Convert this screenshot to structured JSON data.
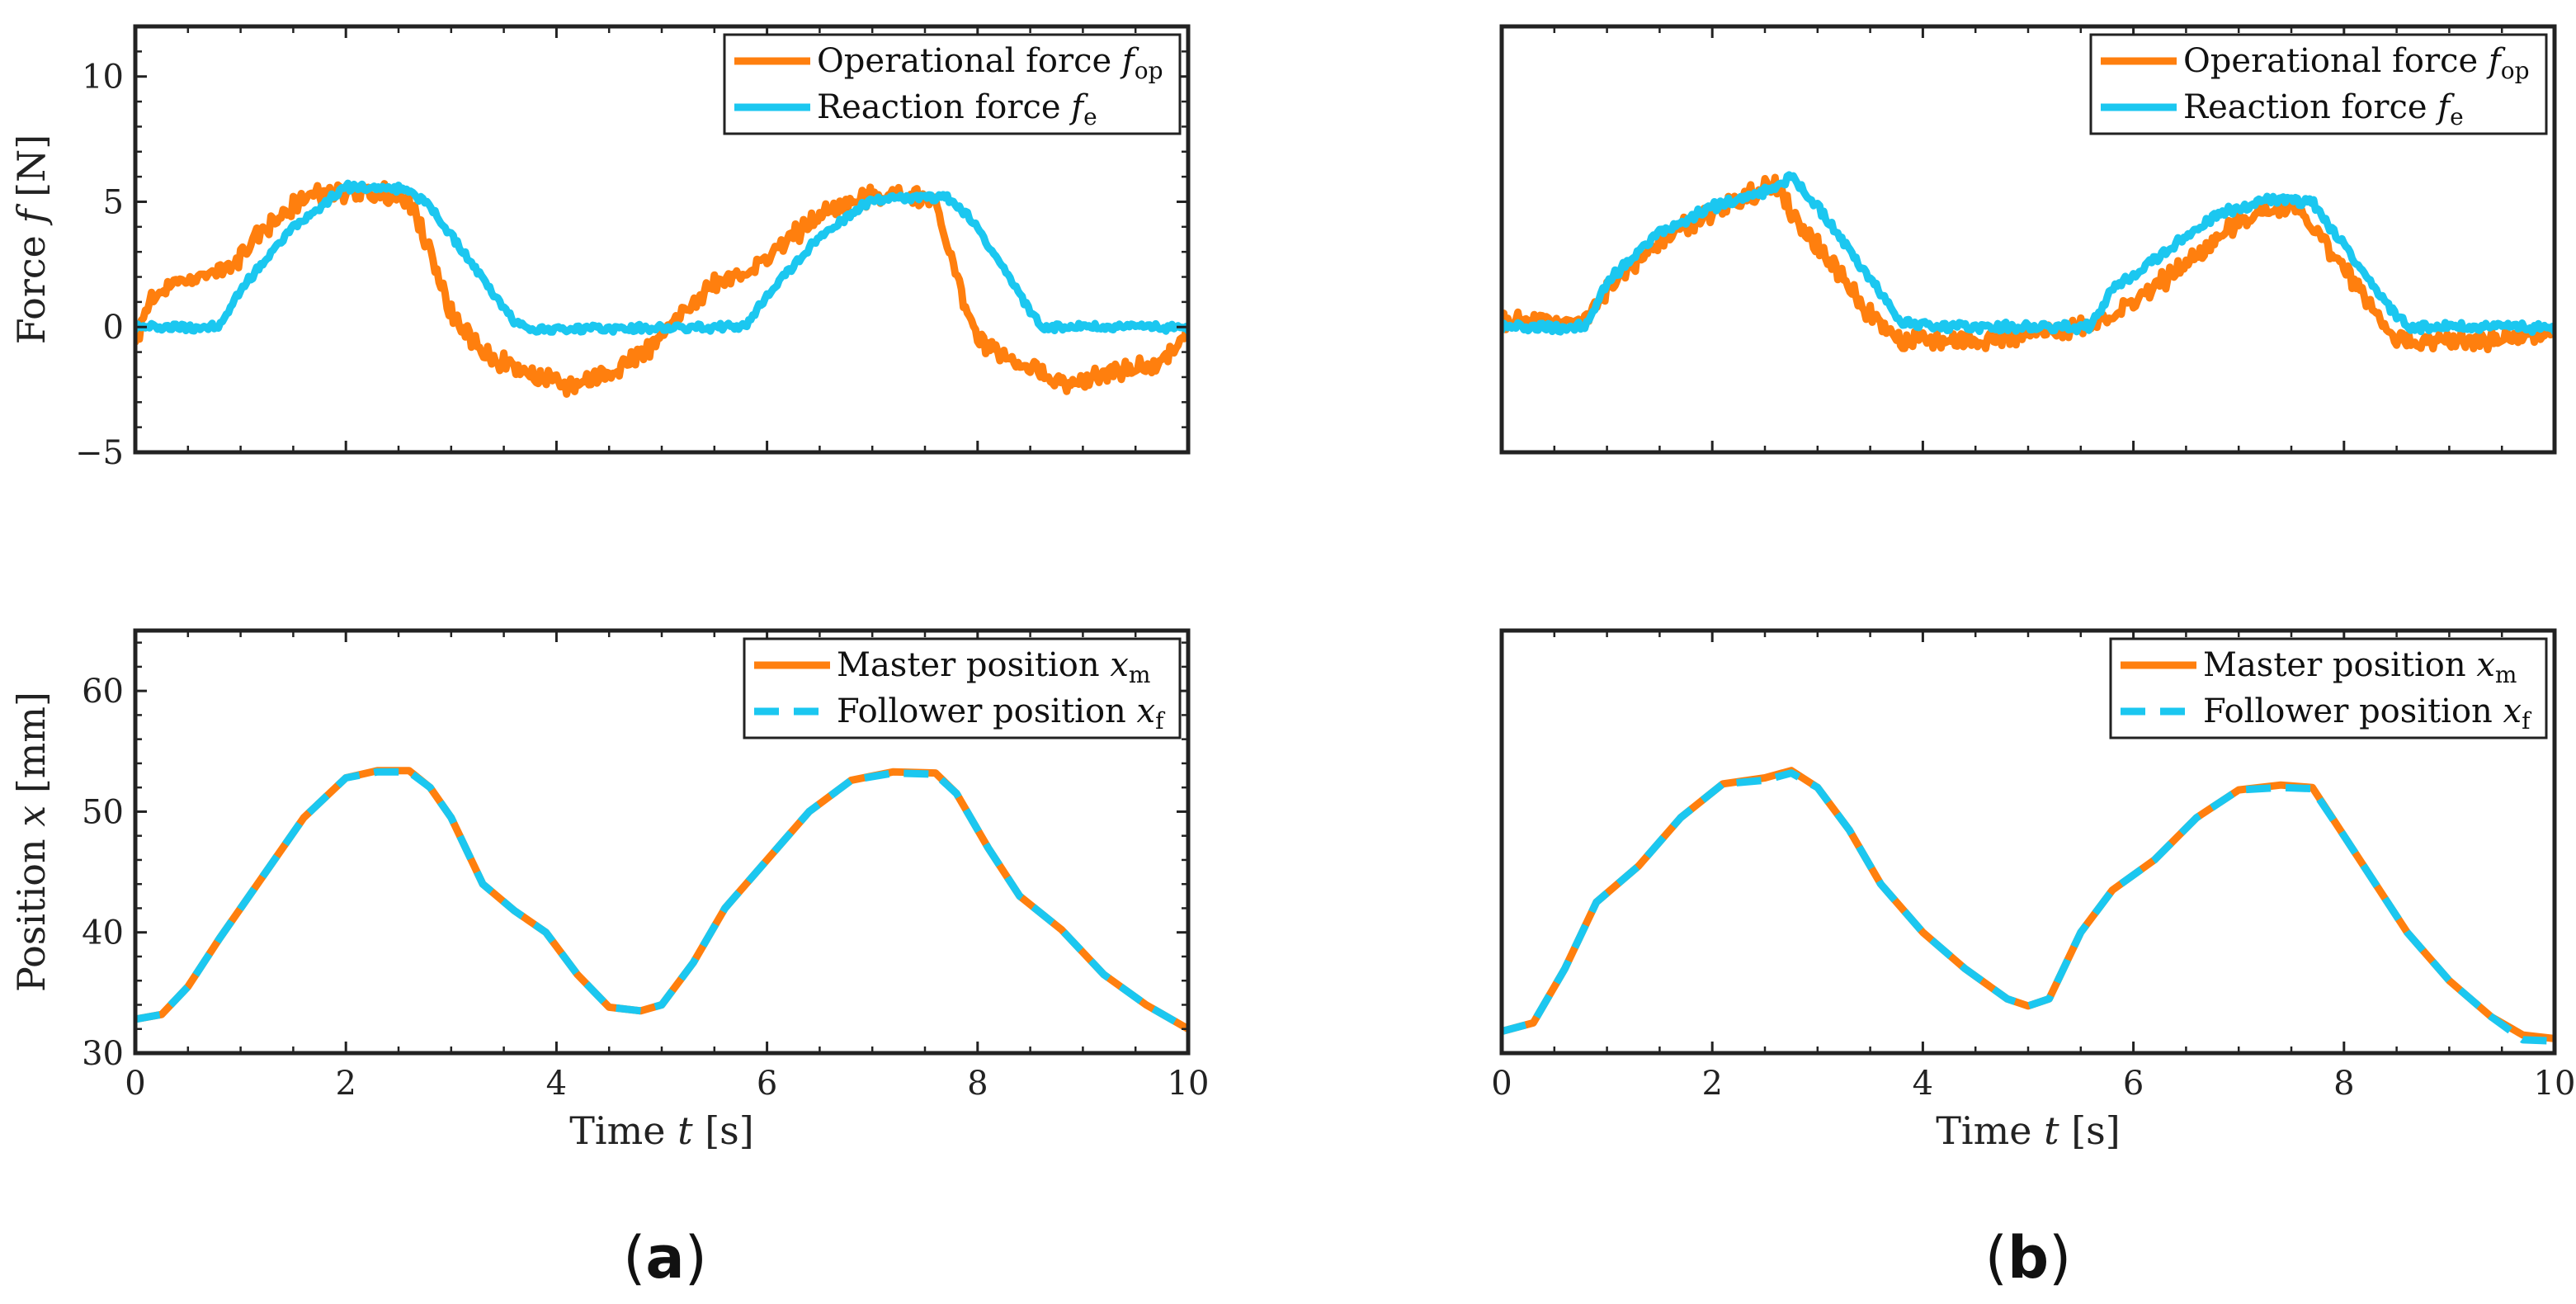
{
  "colors": {
    "orange": "#FF7F0E",
    "cyan": "#1BC7F0",
    "axis": "#222222"
  },
  "panel_labels": {
    "a": {
      "open": "(",
      "letter": "a",
      "close": ")"
    },
    "b": {
      "open": "(",
      "letter": "b",
      "close": ")"
    }
  },
  "labels": {
    "force_ylabel": {
      "prefix": "Force ",
      "sym": "f",
      "unit": " [N]"
    },
    "position_ylabel": {
      "prefix": "Position ",
      "sym": "x",
      "unit": " [mm]"
    },
    "time_xlabel": {
      "prefix": "Time ",
      "sym": "t",
      "unit": " [s]"
    }
  },
  "legends": {
    "force": [
      {
        "text": "Operational force ",
        "sym": "f",
        "sub": "op",
        "color": "#FF7F0E",
        "dash": false
      },
      {
        "text": "Reaction force ",
        "sym": "f",
        "sub": "e",
        "color": "#1BC7F0",
        "dash": false
      }
    ],
    "position": [
      {
        "text": "Master position ",
        "sym": "x",
        "sub": "m",
        "color": "#FF7F0E",
        "dash": false
      },
      {
        "text": "Follower position ",
        "sym": "x",
        "sub": "f",
        "color": "#1BC7F0",
        "dash": true
      }
    ]
  },
  "chart_data": [
    {
      "id": "a-force",
      "panel": "a",
      "type": "line",
      "xlim": [
        0,
        10
      ],
      "ylim": [
        -5,
        12
      ],
      "yticks": [
        -5,
        0,
        5,
        10
      ],
      "ytick_labels": [
        "−5",
        "0",
        "5",
        "10"
      ],
      "xticks": [
        0,
        2,
        4,
        6,
        8,
        10
      ],
      "show_xtick_labels": false,
      "show_yticks": true,
      "ylabel": "force_ylabel",
      "legend": "force",
      "series": [
        {
          "name": "Operational force f_op",
          "color": "#FF7F0E",
          "dash": false,
          "noise": 0.3,
          "points": [
            [
              0,
              -0.8
            ],
            [
              0.1,
              0.8
            ],
            [
              0.3,
              1.5
            ],
            [
              0.6,
              2.0
            ],
            [
              0.9,
              2.3
            ],
            [
              1.2,
              3.8
            ],
            [
              1.6,
              5.2
            ],
            [
              2.0,
              5.4
            ],
            [
              2.4,
              5.3
            ],
            [
              2.6,
              5.0
            ],
            [
              2.8,
              3.0
            ],
            [
              3.0,
              0.5
            ],
            [
              3.3,
              -1.0
            ],
            [
              3.7,
              -1.8
            ],
            [
              4.1,
              -2.4
            ],
            [
              4.5,
              -1.8
            ],
            [
              4.9,
              -0.8
            ],
            [
              5.2,
              0.5
            ],
            [
              5.5,
              1.8
            ],
            [
              5.9,
              2.4
            ],
            [
              6.2,
              3.5
            ],
            [
              6.6,
              4.7
            ],
            [
              7.0,
              5.2
            ],
            [
              7.4,
              5.3
            ],
            [
              7.6,
              5.0
            ],
            [
              7.8,
              2.0
            ],
            [
              8.0,
              -0.5
            ],
            [
              8.4,
              -1.5
            ],
            [
              8.9,
              -2.4
            ],
            [
              9.3,
              -1.7
            ],
            [
              9.7,
              -1.6
            ],
            [
              10,
              -0.3
            ]
          ]
        },
        {
          "name": "Reaction force f_e",
          "color": "#1BC7F0",
          "dash": false,
          "noise": 0.12,
          "points": [
            [
              0,
              0
            ],
            [
              0.8,
              0
            ],
            [
              1.0,
              1.5
            ],
            [
              1.5,
              4.0
            ],
            [
              2.0,
              5.6
            ],
            [
              2.6,
              5.5
            ],
            [
              2.8,
              4.8
            ],
            [
              3.2,
              2.5
            ],
            [
              3.6,
              0.2
            ],
            [
              3.8,
              -0.1
            ],
            [
              5.8,
              0
            ],
            [
              6.0,
              1.3
            ],
            [
              6.5,
              3.6
            ],
            [
              7.0,
              5.1
            ],
            [
              7.7,
              5.2
            ],
            [
              7.9,
              4.5
            ],
            [
              8.3,
              2.0
            ],
            [
              8.6,
              0
            ],
            [
              10,
              0
            ]
          ]
        }
      ]
    },
    {
      "id": "b-force",
      "panel": "b",
      "type": "line",
      "xlim": [
        0,
        10
      ],
      "ylim": [
        -5,
        12
      ],
      "yticks": [
        -5,
        0,
        5,
        10
      ],
      "ytick_labels": [
        "−5",
        "0",
        "5",
        "10"
      ],
      "xticks": [
        0,
        2,
        4,
        6,
        8,
        10
      ],
      "show_xtick_labels": false,
      "show_yticks": false,
      "ylabel": null,
      "legend": "force",
      "series": [
        {
          "name": "Operational force f_op",
          "color": "#FF7F0E",
          "dash": false,
          "noise": 0.3,
          "points": [
            [
              0,
              0.2
            ],
            [
              0.8,
              0.2
            ],
            [
              1.0,
              1.5
            ],
            [
              1.5,
              3.5
            ],
            [
              2.0,
              4.6
            ],
            [
              2.6,
              5.7
            ],
            [
              2.8,
              4.2
            ],
            [
              3.2,
              2.2
            ],
            [
              3.5,
              0.5
            ],
            [
              3.8,
              -0.6
            ],
            [
              4.5,
              -0.5
            ],
            [
              5.3,
              -0.2
            ],
            [
              5.8,
              0.5
            ],
            [
              6.0,
              1.0
            ],
            [
              6.5,
              2.5
            ],
            [
              7.0,
              4.2
            ],
            [
              7.5,
              5.0
            ],
            [
              7.8,
              3.5
            ],
            [
              8.2,
              1.2
            ],
            [
              8.5,
              -0.6
            ],
            [
              9.0,
              -0.6
            ],
            [
              10,
              -0.3
            ]
          ]
        },
        {
          "name": "Reaction force f_e",
          "color": "#1BC7F0",
          "dash": false,
          "noise": 0.15,
          "points": [
            [
              0,
              0
            ],
            [
              0.8,
              0
            ],
            [
              1.0,
              1.8
            ],
            [
              1.5,
              3.8
            ],
            [
              2.0,
              4.8
            ],
            [
              2.5,
              5.4
            ],
            [
              2.75,
              6.0
            ],
            [
              3.0,
              4.8
            ],
            [
              3.4,
              2.5
            ],
            [
              3.8,
              0.2
            ],
            [
              4.2,
              0
            ],
            [
              5.6,
              0
            ],
            [
              5.8,
              1.5
            ],
            [
              6.3,
              3.0
            ],
            [
              6.8,
              4.5
            ],
            [
              7.3,
              5.1
            ],
            [
              7.7,
              5.0
            ],
            [
              7.9,
              3.8
            ],
            [
              8.3,
              1.5
            ],
            [
              8.6,
              0
            ],
            [
              10,
              0
            ]
          ]
        }
      ]
    },
    {
      "id": "a-position",
      "panel": "a",
      "type": "line",
      "xlim": [
        0,
        10
      ],
      "ylim": [
        30,
        65
      ],
      "yticks": [
        30,
        40,
        50,
        60
      ],
      "ytick_labels": [
        "30",
        "40",
        "50",
        "60"
      ],
      "xticks": [
        0,
        2,
        4,
        6,
        8,
        10
      ],
      "xtick_labels": [
        "0",
        "2",
        "4",
        "6",
        "8",
        "10"
      ],
      "show_xtick_labels": true,
      "show_yticks": true,
      "ylabel": "position_ylabel",
      "xlabel": "time_xlabel",
      "legend": "position",
      "series": [
        {
          "name": "Master position x_m",
          "color": "#FF7F0E",
          "dash": false,
          "noise": 0,
          "points": [
            [
              0,
              32.8
            ],
            [
              0.25,
              33.2
            ],
            [
              0.5,
              35.5
            ],
            [
              0.8,
              39.5
            ],
            [
              1.2,
              44.5
            ],
            [
              1.6,
              49.5
            ],
            [
              2.0,
              52.8
            ],
            [
              2.3,
              53.4
            ],
            [
              2.6,
              53.4
            ],
            [
              2.8,
              52.0
            ],
            [
              3.0,
              49.5
            ],
            [
              3.3,
              44.0
            ],
            [
              3.6,
              41.8
            ],
            [
              3.9,
              40.0
            ],
            [
              4.2,
              36.5
            ],
            [
              4.5,
              33.8
            ],
            [
              4.8,
              33.5
            ],
            [
              5.0,
              34.0
            ],
            [
              5.3,
              37.5
            ],
            [
              5.6,
              42.0
            ],
            [
              6.0,
              46.0
            ],
            [
              6.4,
              50.0
            ],
            [
              6.8,
              52.6
            ],
            [
              7.2,
              53.3
            ],
            [
              7.6,
              53.2
            ],
            [
              7.8,
              51.5
            ],
            [
              8.1,
              47.0
            ],
            [
              8.4,
              43.0
            ],
            [
              8.8,
              40.2
            ],
            [
              9.2,
              36.5
            ],
            [
              9.6,
              34.0
            ],
            [
              10,
              32.0
            ]
          ]
        },
        {
          "name": "Follower position x_f",
          "color": "#1BC7F0",
          "dash": true,
          "noise": 0,
          "points": [
            [
              0,
              32.8
            ],
            [
              0.25,
              33.2
            ],
            [
              0.5,
              35.5
            ],
            [
              0.8,
              39.5
            ],
            [
              1.2,
              44.5
            ],
            [
              1.6,
              49.5
            ],
            [
              2.0,
              52.8
            ],
            [
              2.3,
              53.3
            ],
            [
              2.6,
              53.3
            ],
            [
              2.8,
              52.0
            ],
            [
              3.0,
              49.5
            ],
            [
              3.3,
              44.0
            ],
            [
              3.6,
              41.8
            ],
            [
              3.9,
              40.0
            ],
            [
              4.2,
              36.5
            ],
            [
              4.5,
              33.8
            ],
            [
              4.8,
              33.5
            ],
            [
              5.0,
              34.0
            ],
            [
              5.3,
              37.5
            ],
            [
              5.6,
              42.0
            ],
            [
              6.0,
              46.0
            ],
            [
              6.4,
              50.0
            ],
            [
              6.8,
              52.6
            ],
            [
              7.2,
              53.2
            ],
            [
              7.6,
              53.1
            ],
            [
              7.8,
              51.5
            ],
            [
              8.1,
              47.0
            ],
            [
              8.4,
              43.0
            ],
            [
              8.8,
              40.2
            ],
            [
              9.2,
              36.5
            ],
            [
              9.6,
              34.0
            ],
            [
              10,
              32.0
            ]
          ]
        }
      ]
    },
    {
      "id": "b-position",
      "panel": "b",
      "type": "line",
      "xlim": [
        0,
        10
      ],
      "ylim": [
        30,
        65
      ],
      "yticks": [
        30,
        40,
        50,
        60
      ],
      "ytick_labels": [
        "30",
        "40",
        "50",
        "60"
      ],
      "xticks": [
        0,
        2,
        4,
        6,
        8,
        10
      ],
      "xtick_labels": [
        "0",
        "2",
        "4",
        "6",
        "8",
        "10"
      ],
      "show_xtick_labels": true,
      "show_yticks": false,
      "ylabel": null,
      "xlabel": "time_xlabel",
      "legend": "position",
      "series": [
        {
          "name": "Master position x_m",
          "color": "#FF7F0E",
          "dash": false,
          "noise": 0,
          "points": [
            [
              0,
              31.8
            ],
            [
              0.3,
              32.5
            ],
            [
              0.6,
              37.0
            ],
            [
              0.9,
              42.5
            ],
            [
              1.3,
              45.5
            ],
            [
              1.7,
              49.5
            ],
            [
              2.1,
              52.3
            ],
            [
              2.5,
              52.8
            ],
            [
              2.75,
              53.4
            ],
            [
              3.0,
              52.0
            ],
            [
              3.3,
              48.5
            ],
            [
              3.6,
              44.0
            ],
            [
              4.0,
              40.0
            ],
            [
              4.4,
              37.0
            ],
            [
              4.8,
              34.5
            ],
            [
              5.0,
              33.9
            ],
            [
              5.2,
              34.5
            ],
            [
              5.5,
              40.0
            ],
            [
              5.8,
              43.5
            ],
            [
              6.2,
              46.0
            ],
            [
              6.6,
              49.5
            ],
            [
              7.0,
              51.8
            ],
            [
              7.4,
              52.2
            ],
            [
              7.7,
              52.0
            ],
            [
              8.0,
              48.0
            ],
            [
              8.3,
              44.0
            ],
            [
              8.6,
              40.0
            ],
            [
              9.0,
              36.0
            ],
            [
              9.4,
              33.0
            ],
            [
              9.7,
              31.5
            ],
            [
              10,
              31.2
            ]
          ]
        },
        {
          "name": "Follower position x_f",
          "color": "#1BC7F0",
          "dash": true,
          "noise": 0,
          "points": [
            [
              0,
              31.8
            ],
            [
              0.3,
              32.5
            ],
            [
              0.6,
              37.0
            ],
            [
              0.9,
              42.5
            ],
            [
              1.3,
              45.5
            ],
            [
              1.7,
              49.5
            ],
            [
              2.1,
              52.3
            ],
            [
              2.5,
              52.6
            ],
            [
              2.75,
              53.2
            ],
            [
              3.0,
              52.0
            ],
            [
              3.3,
              48.5
            ],
            [
              3.6,
              44.0
            ],
            [
              4.0,
              40.0
            ],
            [
              4.4,
              37.0
            ],
            [
              4.8,
              34.5
            ],
            [
              5.0,
              33.9
            ],
            [
              5.2,
              34.5
            ],
            [
              5.5,
              40.0
            ],
            [
              5.8,
              43.5
            ],
            [
              6.2,
              46.0
            ],
            [
              6.6,
              49.5
            ],
            [
              7.0,
              51.8
            ],
            [
              7.4,
              52.0
            ],
            [
              7.7,
              51.9
            ],
            [
              8.0,
              48.0
            ],
            [
              8.3,
              44.0
            ],
            [
              8.6,
              40.0
            ],
            [
              9.0,
              36.0
            ],
            [
              9.4,
              33.0
            ],
            [
              9.7,
              31.1
            ],
            [
              10,
              31.0
            ]
          ]
        }
      ]
    }
  ]
}
